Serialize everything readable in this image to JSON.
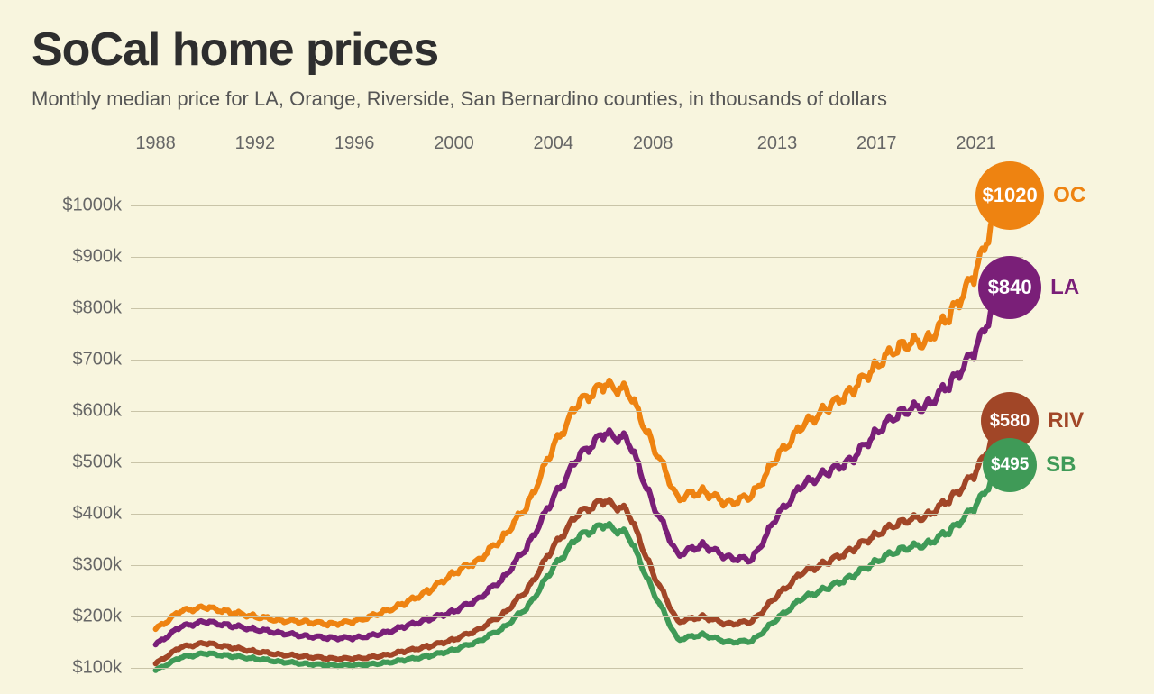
{
  "title": "SoCal home prices",
  "subtitle": "Monthly median price for LA, Orange, Riverside, San Bernardino counties, in thousands of dollars",
  "background_color": "#f8f5de",
  "grid_color": "#c9c4a8",
  "text_color": "#2e2e2e",
  "subtitle_color": "#555555",
  "axis_label_color": "#666666",
  "title_fontsize": 52,
  "subtitle_fontsize": 22,
  "axis_fontsize": 20,
  "plot": {
    "x_years": [
      1988,
      1989,
      1990,
      1991,
      1992,
      1993,
      1994,
      1995,
      1996,
      1997,
      1998,
      1999,
      2000,
      2001,
      2002,
      2003,
      2004,
      2005,
      2006,
      2007,
      2008,
      2009,
      2010,
      2011,
      2012,
      2013,
      2014,
      2015,
      2016,
      2017,
      2018,
      2019,
      2020,
      2021,
      2022
    ],
    "x_min": 1987,
    "x_max": 2022.9,
    "x_ticks": [
      1988,
      1992,
      1996,
      2000,
      2004,
      2008,
      2013,
      2017,
      2021
    ],
    "y_min": 70,
    "y_max": 1070,
    "y_ticks": [
      100,
      200,
      300,
      400,
      500,
      600,
      700,
      800,
      900,
      1000
    ],
    "y_tick_labels": [
      "$100k",
      "$200k",
      "$300k",
      "$400k",
      "$500k",
      "$600k",
      "$700k",
      "$800k",
      "$900k",
      "$1000k"
    ],
    "line_width": 6,
    "series": [
      {
        "id": "oc",
        "label": "OC",
        "color": "#ee8311",
        "badge_text": "$1020",
        "badge_radius": 38,
        "badge_fontsize": 22,
        "end_value": 1020,
        "values": [
          175,
          210,
          218,
          208,
          200,
          192,
          190,
          185,
          190,
          205,
          225,
          250,
          285,
          310,
          355,
          420,
          530,
          615,
          650,
          640,
          535,
          430,
          445,
          420,
          435,
          510,
          570,
          605,
          640,
          690,
          730,
          735,
          790,
          870,
          1020
        ]
      },
      {
        "id": "la",
        "label": "LA",
        "color": "#7a1f78",
        "badge_text": "$840",
        "badge_radius": 35,
        "badge_fontsize": 22,
        "end_value": 840,
        "values": [
          145,
          180,
          190,
          182,
          175,
          168,
          162,
          158,
          158,
          165,
          180,
          195,
          210,
          235,
          275,
          340,
          430,
          510,
          555,
          545,
          420,
          320,
          340,
          315,
          310,
          395,
          455,
          480,
          505,
          560,
          600,
          610,
          655,
          720,
          840
        ]
      },
      {
        "id": "riv",
        "label": "RIV",
        "color": "#a14627",
        "badge_text": "$580",
        "badge_radius": 32,
        "badge_fontsize": 20,
        "end_value": 580,
        "values": [
          108,
          140,
          148,
          140,
          132,
          126,
          122,
          118,
          118,
          122,
          132,
          142,
          155,
          175,
          205,
          255,
          335,
          400,
          425,
          405,
          285,
          190,
          200,
          185,
          190,
          240,
          285,
          305,
          330,
          360,
          385,
          395,
          430,
          480,
          580
        ]
      },
      {
        "id": "sb",
        "label": "SB",
        "color": "#3f9a57",
        "badge_text": "$495",
        "badge_radius": 30,
        "badge_fontsize": 19,
        "end_value": 495,
        "values": [
          95,
          120,
          128,
          123,
          118,
          112,
          108,
          105,
          105,
          108,
          115,
          123,
          135,
          152,
          178,
          220,
          295,
          355,
          378,
          360,
          250,
          155,
          165,
          150,
          152,
          195,
          235,
          255,
          278,
          308,
          332,
          340,
          368,
          415,
          495
        ]
      }
    ],
    "badge_x_offsets": {
      "oc": 0,
      "la": 0,
      "riv": 0,
      "sb": 0
    },
    "label_x_offset": 50
  }
}
